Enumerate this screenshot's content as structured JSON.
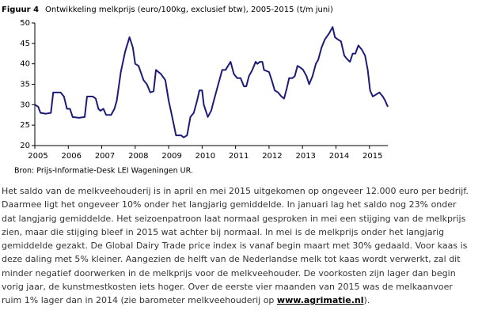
{
  "chart_data": {
    "type": "line",
    "title_label": "Figuur 4",
    "title": "Ontwikkeling melkprijs (euro/100kg, exclusief btw), 2005-2015 (t/m juni)",
    "source": "Bron: Prijs-Informatie-Desk LEI Wageningen UR.",
    "color": "#1c1c78",
    "x": [
      2005.0,
      2005.1,
      2005.17,
      2005.33,
      2005.48,
      2005.55,
      2005.77,
      2005.87,
      2005.96,
      2006.05,
      2006.13,
      2006.32,
      2006.49,
      2006.56,
      2006.73,
      2006.82,
      2006.9,
      2006.96,
      2007.05,
      2007.13,
      2007.28,
      2007.38,
      2007.45,
      2007.57,
      2007.7,
      2007.83,
      2007.93,
      2008.0,
      2008.1,
      2008.25,
      2008.35,
      2008.45,
      2008.55,
      2008.62,
      2008.77,
      2008.9,
      2009.0,
      2009.08,
      2009.22,
      2009.37,
      2009.45,
      2009.55,
      2009.65,
      2009.75,
      2009.85,
      2009.92,
      2010.0,
      2010.05,
      2010.17,
      2010.27,
      2010.35,
      2010.45,
      2010.6,
      2010.7,
      2010.85,
      2010.95,
      2011.05,
      2011.15,
      2011.25,
      2011.32,
      2011.4,
      2011.5,
      2011.6,
      2011.65,
      2011.73,
      2011.8,
      2011.85,
      2012.0,
      2012.08,
      2012.17,
      2012.27,
      2012.37,
      2012.45,
      2012.53,
      2012.6,
      2012.7,
      2012.77,
      2012.85,
      2012.95,
      2013.02,
      2013.12,
      2013.2,
      2013.3,
      2013.4,
      2013.47,
      2013.57,
      2013.67,
      2013.8,
      2013.9,
      2013.97,
      2014.05,
      2014.15,
      2014.25,
      2014.35,
      2014.42,
      2014.5,
      2014.58,
      2014.67,
      2014.77,
      2014.87,
      2014.95,
      2015.02,
      2015.1,
      2015.2,
      2015.3,
      2015.4,
      2015.47,
      2015.55
    ],
    "values": [
      30,
      29.5,
      28,
      27.8,
      28,
      33,
      33,
      32,
      29,
      29,
      27,
      26.8,
      27,
      32,
      32,
      31.5,
      29,
      28.5,
      29,
      27.5,
      27.5,
      29,
      31,
      38,
      43,
      46.5,
      44,
      40,
      39.5,
      36,
      35,
      33,
      33.3,
      38.5,
      37.5,
      36,
      31,
      28,
      22.5,
      22.5,
      22,
      22.5,
      27,
      28,
      31,
      33.5,
      33.5,
      30,
      27,
      28.5,
      31,
      34,
      38.5,
      38.5,
      40.5,
      37.5,
      36.5,
      36.5,
      34.5,
      34.5,
      37,
      38.5,
      40.5,
      40,
      40.5,
      40.5,
      38.5,
      38,
      36,
      33.5,
      33,
      32,
      31.5,
      34,
      36.5,
      36.5,
      37,
      39.5,
      39,
      38.5,
      37,
      35,
      37,
      40,
      41,
      44,
      46,
      47.5,
      49,
      46.5,
      46,
      45.5,
      42,
      41,
      40.5,
      42.5,
      42.5,
      44.5,
      43.5,
      42,
      38.5,
      33.5,
      32,
      32.5,
      33,
      32,
      31,
      29.5
    ],
    "xlim": [
      2005,
      2015.55
    ],
    "xticks": [
      2005,
      2006,
      2007,
      2008,
      2009,
      2010,
      2011,
      2012,
      2013,
      2014,
      2015
    ],
    "ylim": [
      20,
      50
    ],
    "yticks": [
      20,
      25,
      30,
      35,
      40,
      45,
      50
    ],
    "grid": false
  },
  "text": {
    "lines": [
      "Het saldo van de melkveehouderij is in april en mei 2015 uitgekomen op ongeveer 12.000 euro per bedrijf.",
      "Daarmee ligt het ongeveer 10% onder het langjarig gemiddelde. In januari lag het saldo nog 23% onder",
      "dat langjarig gemiddelde. Het seizoenpatroon laat normaal gesproken in mei een stijging van de melkprijs",
      "zien, maar die stijging bleef in 2015 wat achter bij normaal. In mei is de melkprijs onder het langjarig",
      "gemiddelde gezakt. De Global Dairy Trade price index is vanaf begin maart met 30% gedaald. Voor kaas is",
      "deze daling met 5% kleiner. Aangezien de helft van de Nederlandse melk tot kaas wordt verwerkt, zal dit",
      "minder negatief doorwerken in de melkprijs voor de melkveehouder. De voorkosten zijn lager dan begin",
      "vorig jaar, de kunstmestkosten iets hoger. Over de eerste vier maanden van 2015 was de melkaanvoer"
    ],
    "last_line_start": "ruim 1% lager dan in 2014 (zie barometer melkveehouderij op ",
    "link": "www.agrimatie.nl",
    "last_line_end": ")."
  }
}
